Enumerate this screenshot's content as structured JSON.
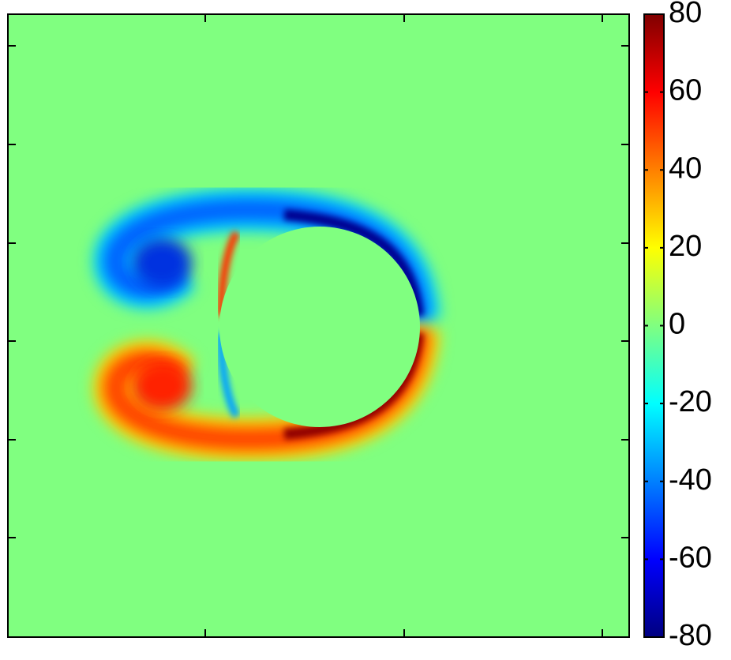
{
  "chart_data": {
    "type": "heatmap",
    "colormap": "jet",
    "clim": [
      -80,
      80
    ],
    "cticks": [
      -80,
      -60,
      -40,
      -20,
      0,
      20,
      40,
      60,
      80
    ]
  }
}
